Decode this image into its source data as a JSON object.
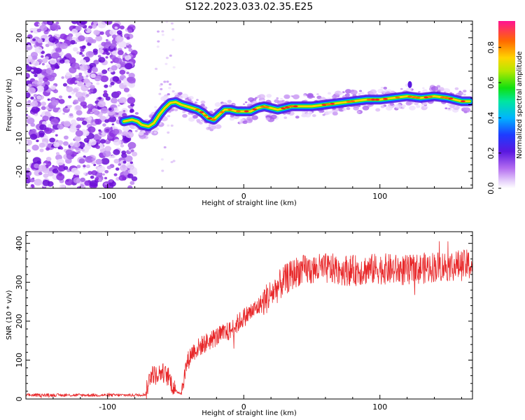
{
  "title": "S122.2023.033.02.35.E25",
  "colors": {
    "snr_line": "#e8282a",
    "colormap": [
      "#ffffff",
      "#d9b3f5",
      "#8a2be2",
      "#2020ff",
      "#00c8ff",
      "#00e000",
      "#ffe000",
      "#ff7000",
      "#ff1493"
    ]
  },
  "chart_data": [
    {
      "type": "heatmap",
      "title": "",
      "xlabel": "Height of straight line (km)",
      "ylabel": "Frequency (Hz)",
      "xlim": [
        -160,
        168
      ],
      "ylim": [
        -25,
        25
      ],
      "x_ticks": [
        "-100",
        "0",
        "100"
      ],
      "y_ticks": [
        "-20",
        "-10",
        "0",
        "10",
        "20"
      ],
      "colorbar": {
        "label": "Normalized spectral amplitude",
        "range": [
          0.0,
          0.95
        ],
        "ticks": [
          "0.0",
          "0.2",
          "0.4",
          "0.6",
          "0.8"
        ]
      },
      "ridge": {
        "x": [
          -88,
          -82,
          -78,
          -75,
          -70,
          -66,
          -62,
          -58,
          -54,
          -50,
          -46,
          -42,
          -38,
          -34,
          -30,
          -26,
          -22,
          -18,
          -14,
          -10,
          -5,
          0,
          5,
          10,
          15,
          20,
          25,
          30,
          35,
          40,
          50,
          60,
          70,
          80,
          90,
          100,
          110,
          120,
          130,
          140,
          150,
          160,
          166
        ],
        "y": [
          -5,
          -4.5,
          -5,
          -6,
          -6.5,
          -5.5,
          -3,
          -1,
          0.5,
          0.8,
          0,
          -0.5,
          -1,
          -1.5,
          -2.5,
          -4,
          -4.5,
          -3,
          -1.5,
          -1.5,
          -2,
          -2,
          -2,
          -1,
          -0.5,
          -1,
          -1.5,
          -1,
          -0.5,
          -0.5,
          -0.5,
          0,
          0.5,
          1,
          1.5,
          1.5,
          2,
          2.5,
          2,
          2.5,
          2,
          1,
          1
        ]
      }
    },
    {
      "type": "line",
      "title": "",
      "xlabel": "Height of straight line (km)",
      "ylabel": "SNR (10 * v/v)",
      "xlim": [
        -160,
        168
      ],
      "ylim": [
        0,
        430
      ],
      "x_ticks": [
        "-100",
        "0",
        "100"
      ],
      "y_ticks": [
        "0",
        "100",
        "200",
        "300",
        "400"
      ],
      "trend": {
        "x": [
          -160,
          -80,
          -72,
          -68,
          -65,
          -60,
          -55,
          -50,
          -46,
          -42,
          -38,
          -30,
          -20,
          -10,
          0,
          10,
          20,
          30,
          40,
          60,
          80,
          100,
          120,
          140,
          168
        ],
        "y": [
          10,
          10,
          12,
          70,
          60,
          70,
          55,
          20,
          15,
          90,
          120,
          140,
          160,
          175,
          210,
          235,
          270,
          305,
          330,
          335,
          330,
          335,
          330,
          340,
          345
        ]
      },
      "series": [
        {
          "values": []
        }
      ]
    }
  ]
}
